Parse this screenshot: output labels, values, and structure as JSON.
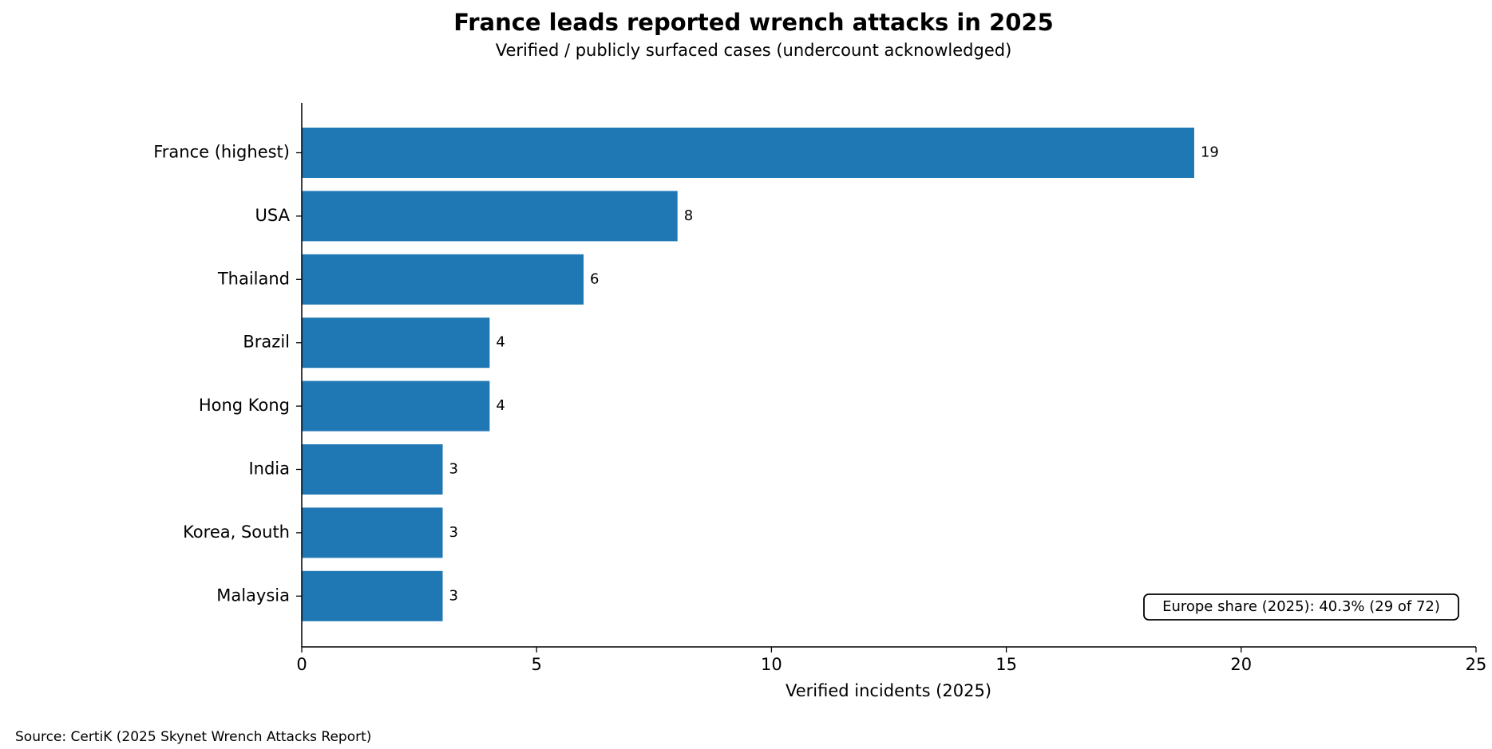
{
  "chart_data": {
    "type": "barh",
    "title": "France leads reported wrench attacks in 2025",
    "subtitle": "Verified / publicly surfaced cases (undercount acknowledged)",
    "categories": [
      "France (highest)",
      "USA",
      "Thailand",
      "Brazil",
      "Hong Kong",
      "India",
      "Korea, South",
      "Malaysia"
    ],
    "values": [
      19,
      8,
      6,
      4,
      4,
      3,
      3,
      3
    ],
    "color": "#1f77b4",
    "xlim": [
      0,
      25
    ],
    "xticks": [
      0,
      5,
      10,
      15,
      20,
      25
    ],
    "xlabel": "Verified incidents (2025)",
    "annotation": "Europe share (2025): 40.3% (29 of 72)",
    "source": "Source: CertiK (2025 Skynet Wrench Attacks Report)",
    "grid": false
  }
}
